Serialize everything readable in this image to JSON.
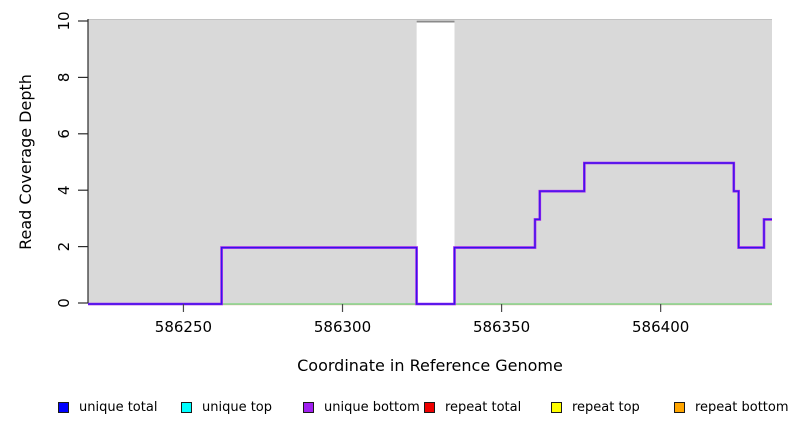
{
  "chart_data": {
    "type": "line",
    "subtype": "step-coverage",
    "title": "",
    "xlabel": "Coordinate in Reference Genome",
    "ylabel": "Read Coverage Depth",
    "xlim": [
      586220,
      586435
    ],
    "ylim": [
      0,
      10
    ],
    "xticks": [
      586250,
      586300,
      586350,
      586400
    ],
    "yticks": [
      0,
      2,
      4,
      6,
      8,
      10
    ],
    "grid": false,
    "legend_position": "bottom",
    "plot_area_fill": "#D9D9D9",
    "plot_area_top_border": "#C2C2C2",
    "shaded_regions": [
      {
        "name": "covered-region-left",
        "x0": 586220,
        "x1": 586323.3
      },
      {
        "name": "covered-region-right",
        "x0": 586335.2,
        "x1": 586435
      }
    ],
    "gap_region": {
      "name": "uncovered-gap",
      "x0": 586323.3,
      "x1": 586335.2,
      "top_line_y": 10,
      "top_line_color": "#8A8A8A"
    },
    "series": [
      {
        "name": "baseline-shadow",
        "strokes": [
          {
            "color": "#F2DFD7",
            "width": 1,
            "opacity": 1
          }
        ],
        "dy": 2,
        "points": [
          [
            586220,
            0
          ],
          [
            586435,
            0
          ]
        ]
      },
      {
        "name": "baseline-zero-green",
        "strokes": [
          {
            "color": "#7CC87C",
            "width": 1.4,
            "opacity": 1
          }
        ],
        "dy": 1,
        "points": [
          [
            586262,
            0
          ],
          [
            586435,
            0
          ]
        ]
      },
      {
        "name": "unique-coverage-step",
        "strokes": [
          {
            "color": "#A020F0",
            "width": 2.6,
            "opacity": 1
          },
          {
            "color": "#2914E8",
            "width": 1.2,
            "opacity": 0.9
          }
        ],
        "dy": 1,
        "points": [
          [
            586220,
            0
          ],
          [
            586262,
            0
          ],
          [
            586262,
            2
          ],
          [
            586323.3,
            2
          ],
          [
            586323.3,
            0
          ],
          [
            586335.2,
            0
          ],
          [
            586335.2,
            2
          ],
          [
            586360.5,
            2
          ],
          [
            586360.5,
            3
          ],
          [
            586362,
            3
          ],
          [
            586362,
            4
          ],
          [
            586376,
            4
          ],
          [
            586376,
            5
          ],
          [
            586423,
            5
          ],
          [
            586423,
            4
          ],
          [
            586424.5,
            4
          ],
          [
            586424.5,
            2
          ],
          [
            586432.5,
            2
          ],
          [
            586432.5,
            3
          ],
          [
            586435,
            3
          ]
        ]
      }
    ],
    "legend": {
      "items": [
        {
          "label": "unique total",
          "color": "#0000FF"
        },
        {
          "label": "unique top",
          "color": "#00FFFF"
        },
        {
          "label": "unique bottom",
          "color": "#A020F0"
        },
        {
          "label": "repeat total",
          "color": "#EE0000"
        },
        {
          "label": "repeat top",
          "color": "#FFFF00"
        },
        {
          "label": "repeat bottom",
          "color": "#FFA500"
        }
      ]
    }
  }
}
